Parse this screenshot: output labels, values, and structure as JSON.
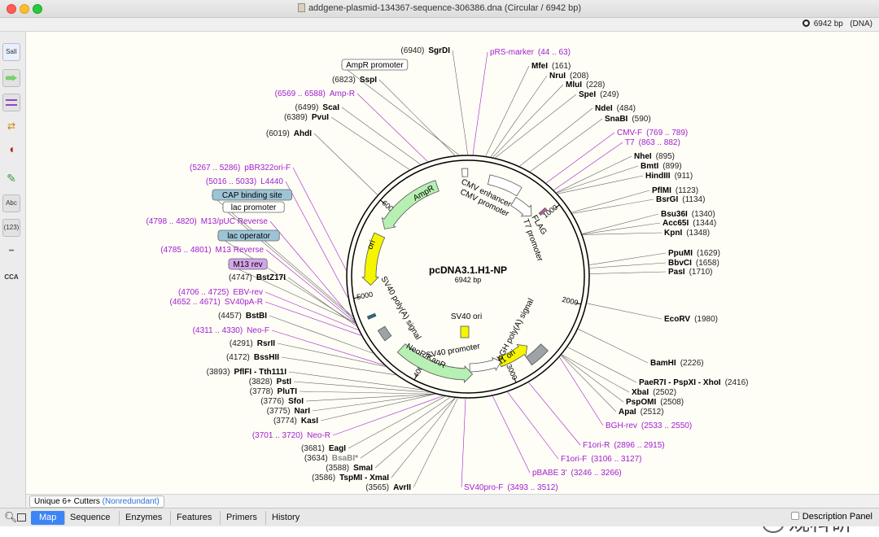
{
  "window": {
    "title": "addgene-plasmid-134367-sequence-306386.dna  (Circular / 6942 bp)",
    "bp_info": "6942 bp",
    "bp_type": "(DNA)"
  },
  "plasmid": {
    "name": "pcDNA3.1.H1-NP",
    "size": "6942 bp"
  },
  "toolbar": {
    "btn_sali": "SalI",
    "btn_abc": "Abc",
    "btn_123": "(123)",
    "btn_cca": "CCA"
  },
  "bottom": {
    "cutters_label": "Unique 6+ Cutters",
    "cutters_mode": "(Nonredundant)",
    "watermark": "观科研"
  },
  "tabs": [
    "Map",
    "Sequence",
    "Enzymes",
    "Features",
    "Primers",
    "History"
  ],
  "description_panel": "Description Panel",
  "ticks": [
    "1000",
    "2000",
    "3000",
    "4000",
    "5000",
    "6000"
  ],
  "features_text": {
    "cmv_enh": "CMV enhancer",
    "cmv_prom": "CMV promoter",
    "flag": "FLAG",
    "t7": "T7 promoter",
    "bgh": "bGH poly(A) signal",
    "f1": "f1 ori",
    "sv40prom": "SV40 promoter",
    "neo": "NeoR/KanR",
    "sv40polya": "SV40 poly(A) signal",
    "ori": "ori",
    "ampr": "AmpR",
    "sv40ori": "SV40 ori"
  },
  "enzymes_right": [
    {
      "name": "SgrDI",
      "pos": "(6940)"
    },
    {
      "name": "MfeI",
      "pos": "(161)"
    },
    {
      "name": "NruI",
      "pos": "(208)"
    },
    {
      "name": "MluI",
      "pos": "(228)"
    },
    {
      "name": "SpeI",
      "pos": "(249)"
    },
    {
      "name": "NdeI",
      "pos": "(484)"
    },
    {
      "name": "SnaBI",
      "pos": "(590)"
    },
    {
      "name": "NheI",
      "pos": "(895)"
    },
    {
      "name": "BmtI",
      "pos": "(899)"
    },
    {
      "name": "HindIII",
      "pos": "(911)"
    },
    {
      "name": "PflMI",
      "pos": "(1123)"
    },
    {
      "name": "BsrGI",
      "pos": "(1134)"
    },
    {
      "name": "Bsu36I",
      "pos": "(1340)"
    },
    {
      "name": "Acc65I",
      "pos": "(1344)"
    },
    {
      "name": "KpnI",
      "pos": "(1348)"
    },
    {
      "name": "PpuMI",
      "pos": "(1629)"
    },
    {
      "name": "BbvCI",
      "pos": "(1658)"
    },
    {
      "name": "PasI",
      "pos": "(1710)"
    },
    {
      "name": "EcoRV",
      "pos": "(1980)"
    },
    {
      "name": "BamHI",
      "pos": "(2226)"
    },
    {
      "name": "PaeR7I - PspXI - XhoI",
      "pos": "(2416)"
    },
    {
      "name": "XbaI",
      "pos": "(2502)"
    },
    {
      "name": "PspOMI",
      "pos": "(2508)"
    },
    {
      "name": "ApaI",
      "pos": "(2512)"
    }
  ],
  "enzymes_left": [
    {
      "name": "SspI",
      "pos": "(6823)"
    },
    {
      "name": "ScaI",
      "pos": "(6499)"
    },
    {
      "name": "PvuI",
      "pos": "(6389)"
    },
    {
      "name": "AhdI",
      "pos": "(6019)"
    },
    {
      "name": "BstZ17I",
      "pos": "(4747)"
    },
    {
      "name": "BstBI",
      "pos": "(4457)"
    },
    {
      "name": "RsrII",
      "pos": "(4291)"
    },
    {
      "name": "BssHII",
      "pos": "(4172)"
    },
    {
      "name": "PflFI - Tth111I",
      "pos": "(3893)"
    },
    {
      "name": "PstI",
      "pos": "(3828)"
    },
    {
      "name": "PluTI",
      "pos": "(3778)"
    },
    {
      "name": "SfoI",
      "pos": "(3776)"
    },
    {
      "name": "NarI",
      "pos": "(3775)"
    },
    {
      "name": "KasI",
      "pos": "(3774)"
    },
    {
      "name": "EagI",
      "pos": "(3681)"
    },
    {
      "name": "BsaBI*",
      "pos": "(3634)"
    },
    {
      "name": "SmaI",
      "pos": "(3588)"
    },
    {
      "name": "TspMI - XmaI",
      "pos": "(3586)"
    },
    {
      "name": "AvrII",
      "pos": "(3565)"
    }
  ],
  "primers": [
    {
      "name": "pRS-marker",
      "pos": "(44 .. 63)"
    },
    {
      "name": "CMV-F",
      "pos": "(769 .. 789)"
    },
    {
      "name": "T7",
      "pos": "(863 .. 882)"
    },
    {
      "name": "BGH-rev",
      "pos": "(2533 .. 2550)"
    },
    {
      "name": "F1ori-R",
      "pos": "(2896 .. 2915)"
    },
    {
      "name": "F1ori-F",
      "pos": "(3106 .. 3127)"
    },
    {
      "name": "pBABE 3'",
      "pos": "(3246 .. 3266)"
    },
    {
      "name": "SV40pro-F",
      "pos": "(3493 .. 3512)"
    },
    {
      "name": "Amp-R",
      "pos": "(6569 .. 6588)"
    },
    {
      "name": "pBR322ori-F",
      "pos": "(5267 .. 5286)"
    },
    {
      "name": "L4440",
      "pos": "(5016 .. 5033)"
    },
    {
      "name": "M13/pUC Reverse",
      "pos": "(4798 .. 4820)"
    },
    {
      "name": "M13 Reverse",
      "pos": "(4785 .. 4801)"
    },
    {
      "name": "EBV-rev",
      "pos": "(4706 .. 4725)"
    },
    {
      "name": "SV40pA-R",
      "pos": "(4652 .. 4671)"
    },
    {
      "name": "Neo-F",
      "pos": "(4311 .. 4330)"
    },
    {
      "name": "Neo-R",
      "pos": "(3701 .. 3720)"
    }
  ],
  "boxed_labels": {
    "ampr_promoter": "AmpR promoter",
    "cap_site": "CAP binding site",
    "lac_promoter": "lac promoter",
    "lac_operator": "lac operator",
    "m13rev": "M13 rev"
  },
  "colors": {
    "primer": "#a020d0",
    "feature_green": "#b6f0b3",
    "feature_yellow": "#f5f500",
    "feature_white": "#ffffff",
    "feature_gray": "#9ea3a8",
    "feature_blue": "#9cc4d6",
    "tab_active": "#3d84f5"
  }
}
